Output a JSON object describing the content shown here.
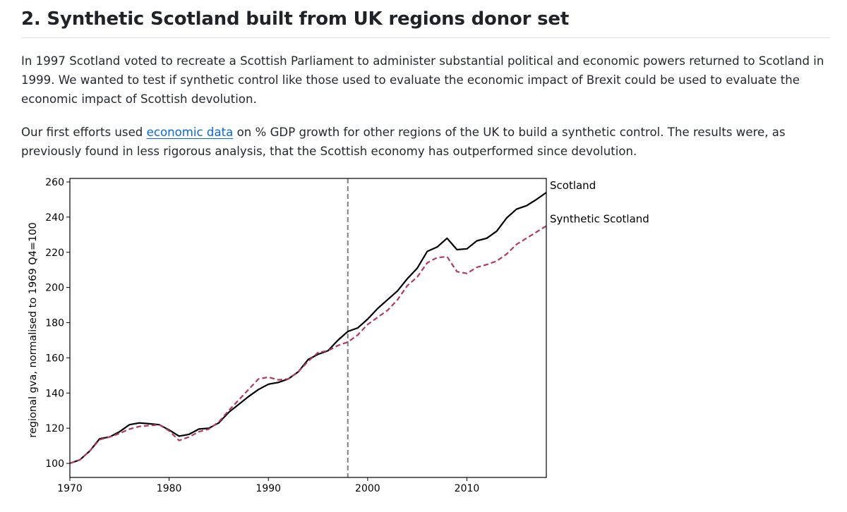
{
  "heading": "2. Synthetic Scotland built from UK regions donor set",
  "paragraph1": "In 1997 Scotland voted to recreate a Scottish Parliament to administer substantial political and economic powers returned to Scotland in 1999. We wanted to test if synthetic control like those used to evaluate the economic impact of Brexit could be used to evaluate the economic impact of Scottish devolution.",
  "paragraph2": {
    "before": "Our first efforts used ",
    "link": "economic data",
    "after": " on % GDP growth for other regions of the UK to build a synthetic control. The results were, as previously found in less rigorous analysis, that the Scottish economy has outperformed since devolution."
  },
  "colors": {
    "scotland": "#000000",
    "synthetic": "#b03a5b",
    "vline": "#808080",
    "link": "#0969da"
  },
  "chart_data": {
    "type": "line",
    "title": "",
    "xlabel": "",
    "ylabel": "regional gva, normalised to 1969 Q4=100",
    "xlim": [
      1970,
      2018
    ],
    "ylim": [
      92,
      262
    ],
    "xticks": [
      1970,
      1980,
      1990,
      2000,
      2010
    ],
    "yticks": [
      100,
      120,
      140,
      160,
      180,
      200,
      220,
      240,
      260
    ],
    "vline_x": 1998,
    "grid": false,
    "series": [
      {
        "name": "Scotland",
        "style": "solid",
        "x": [
          1970,
          1971,
          1972,
          1973,
          1974,
          1975,
          1976,
          1977,
          1978,
          1979,
          1980,
          1981,
          1982,
          1983,
          1984,
          1985,
          1986,
          1987,
          1988,
          1989,
          1990,
          1991,
          1992,
          1993,
          1994,
          1995,
          1996,
          1997,
          1998,
          1999,
          2000,
          2001,
          2002,
          2003,
          2004,
          2005,
          2006,
          2007,
          2008,
          2009,
          2010,
          2011,
          2012,
          2013,
          2014,
          2015,
          2016,
          2017,
          2018
        ],
        "y": [
          100,
          102,
          107,
          114,
          115,
          118,
          122,
          123,
          122.5,
          122,
          119,
          115.5,
          116.5,
          119.5,
          120,
          123,
          129,
          133.5,
          138,
          142,
          145,
          146,
          148,
          152,
          159,
          162,
          164,
          170,
          175,
          177,
          182,
          188,
          193,
          198,
          205,
          211,
          220.5,
          223,
          228,
          221.5,
          222,
          226.5,
          228,
          232,
          239.5,
          244.5,
          246.5,
          250,
          254
        ]
      },
      {
        "name": "Synthetic Scotland",
        "style": "dashed",
        "x": [
          1970,
          1971,
          1972,
          1973,
          1974,
          1975,
          1976,
          1977,
          1978,
          1979,
          1980,
          1981,
          1982,
          1983,
          1984,
          1985,
          1986,
          1987,
          1988,
          1989,
          1990,
          1991,
          1992,
          1993,
          1994,
          1995,
          1996,
          1997,
          1998,
          1999,
          2000,
          2001,
          2002,
          2003,
          2004,
          2005,
          2006,
          2007,
          2008,
          2009,
          2010,
          2011,
          2012,
          2013,
          2014,
          2015,
          2016,
          2017,
          2018
        ],
        "y": [
          100,
          102,
          107,
          113.5,
          115,
          117,
          119.5,
          121,
          121.5,
          122,
          118.5,
          113,
          115,
          118,
          119.5,
          123.5,
          130,
          136,
          142,
          148,
          149,
          147.5,
          148,
          152,
          158,
          163,
          164,
          167,
          169,
          173,
          179,
          183,
          187,
          193,
          201,
          206,
          214,
          217,
          217.5,
          209,
          208,
          211.5,
          213,
          215,
          219,
          224.5,
          228,
          231.5,
          235
        ]
      }
    ]
  }
}
